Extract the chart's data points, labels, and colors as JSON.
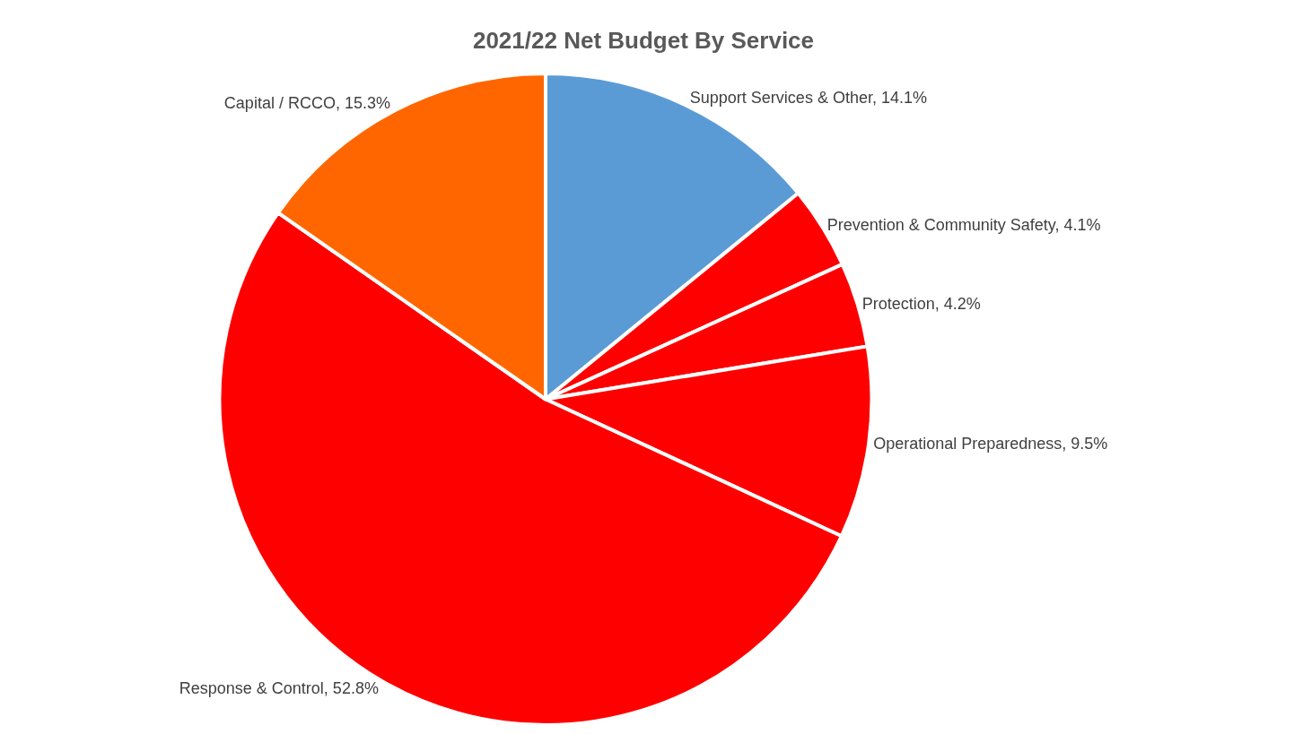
{
  "chart_data": {
    "type": "pie",
    "title": "2021/22 Net Budget By Service",
    "categories": [
      "Support Services & Other",
      "Prevention & Community Safety",
      "Protection",
      "Operational Preparedness",
      "Response & Control",
      "Capital / RCCO"
    ],
    "values": [
      14.1,
      4.1,
      4.2,
      9.5,
      52.8,
      15.3
    ],
    "value_labels": [
      "14.1%",
      "4.1%",
      "4.2%",
      "9.5%",
      "52.8%",
      "15.3%"
    ],
    "colors": [
      "#5b9bd5",
      "#ff0000",
      "#ff0000",
      "#ff0000",
      "#ff0000",
      "#ff6600"
    ],
    "legend": false
  }
}
